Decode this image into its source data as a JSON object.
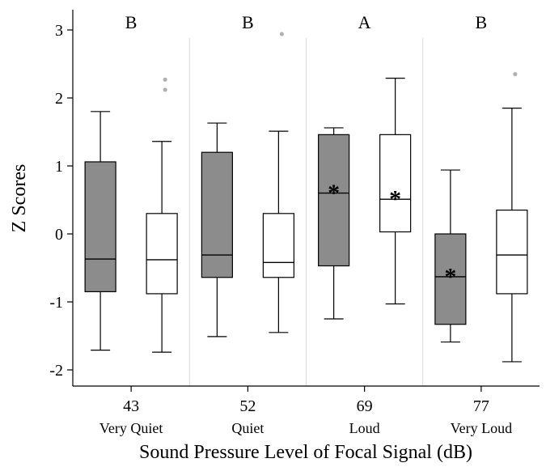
{
  "chart_data": {
    "type": "box",
    "title": "",
    "xlabel": "Sound Pressure Level of Focal Signal (dB)",
    "ylabel": "Z Scores",
    "ylim": [
      -2.3,
      3.3
    ],
    "yticks": [
      -2,
      -1,
      0,
      1,
      2,
      3
    ],
    "ytick_labels": [
      "-2",
      "-1",
      "0",
      "1",
      "2",
      "3"
    ],
    "grid": false,
    "colors": {
      "filled": "#8c8c8c",
      "open": "#ffffff",
      "outlier": "#b0b0b0",
      "separator": "#d9d9d9"
    },
    "groups": [
      {
        "db": "43",
        "label": "Very Quiet",
        "letter": "B",
        "boxes": [
          {
            "fill": "filled",
            "whisker_low": -1.71,
            "q1": -0.85,
            "median": -0.37,
            "q3": 1.06,
            "whisker_high": 1.8,
            "outliers": [],
            "asterisk": false
          },
          {
            "fill": "open",
            "whisker_low": -1.74,
            "q1": -0.88,
            "median": -0.38,
            "q3": 0.3,
            "whisker_high": 1.36,
            "outliers": [
              2.12,
              2.27
            ],
            "asterisk": false
          }
        ]
      },
      {
        "db": "52",
        "label": "Quiet",
        "letter": "B",
        "boxes": [
          {
            "fill": "filled",
            "whisker_low": -1.51,
            "q1": -0.64,
            "median": -0.31,
            "q3": 1.2,
            "whisker_high": 1.63,
            "outliers": [],
            "asterisk": false
          },
          {
            "fill": "open",
            "whisker_low": -1.45,
            "q1": -0.64,
            "median": -0.42,
            "q3": 0.3,
            "whisker_high": 1.51,
            "outliers": [
              2.94
            ],
            "asterisk": false
          }
        ]
      },
      {
        "db": "69",
        "label": "Loud",
        "letter": "A",
        "boxes": [
          {
            "fill": "filled",
            "whisker_low": -1.25,
            "q1": -0.47,
            "median": 0.6,
            "q3": 1.46,
            "whisker_high": 1.56,
            "outliers": [],
            "asterisk": true
          },
          {
            "fill": "open",
            "whisker_low": -1.03,
            "q1": 0.03,
            "median": 0.51,
            "q3": 1.46,
            "whisker_high": 2.29,
            "outliers": [],
            "asterisk": true
          }
        ]
      },
      {
        "db": "77",
        "label": "Very Loud",
        "letter": "B",
        "boxes": [
          {
            "fill": "filled",
            "whisker_low": -1.59,
            "q1": -1.33,
            "median": -0.63,
            "q3": 0.0,
            "whisker_high": 0.94,
            "outliers": [],
            "asterisk": true
          },
          {
            "fill": "open",
            "whisker_low": -1.88,
            "q1": -0.88,
            "median": -0.31,
            "q3": 0.35,
            "whisker_high": 1.85,
            "outliers": [
              2.35
            ],
            "asterisk": false
          }
        ]
      }
    ]
  }
}
